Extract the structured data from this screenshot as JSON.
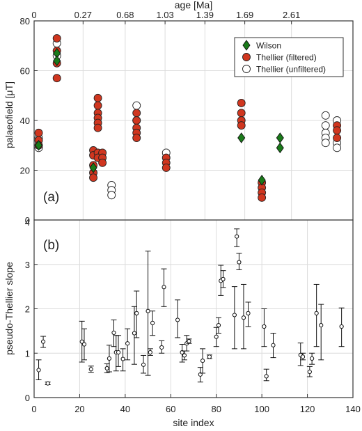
{
  "chart_data": [
    {
      "type": "scatter",
      "panel_label": "(a)",
      "ylabel": "palaeofield [μT]",
      "xlabel_top": "age [Ma]",
      "xlim": [
        0,
        140
      ],
      "ylim": [
        0,
        80
      ],
      "yticks": [
        0,
        20,
        40,
        60,
        80
      ],
      "top_ticks": [
        {
          "x": 0,
          "label": "0"
        },
        {
          "x": 21.5,
          "label": "0.27"
        },
        {
          "x": 40,
          "label": "0.68"
        },
        {
          "x": 57.5,
          "label": "1.03"
        },
        {
          "x": 75,
          "label": "1.39"
        },
        {
          "x": 92.5,
          "label": "1.69"
        },
        {
          "x": 113,
          "label": "2.61"
        }
      ],
      "grid": true,
      "legend_position": "top-right",
      "series": [
        {
          "name": "Wilson",
          "marker": "diamond",
          "color": "#1a7a1a",
          "points": [
            [
              2,
              30
            ],
            [
              10,
              67
            ],
            [
              10,
              64
            ],
            [
              26,
              21
            ],
            [
              91,
              33
            ],
            [
              100,
              16
            ],
            [
              108,
              33
            ],
            [
              108,
              29
            ]
          ]
        },
        {
          "name": "Thellier (filtered)",
          "marker": "circle",
          "color": "#d0361f",
          "points": [
            [
              2,
              35
            ],
            [
              2,
              32
            ],
            [
              2,
              30
            ],
            [
              10,
              73
            ],
            [
              10,
              68
            ],
            [
              10,
              63
            ],
            [
              10,
              57
            ],
            [
              26,
              28
            ],
            [
              26,
              26
            ],
            [
              26,
              22
            ],
            [
              26,
              19
            ],
            [
              26,
              17
            ],
            [
              28,
              49
            ],
            [
              28,
              46
            ],
            [
              28,
              43
            ],
            [
              28,
              41
            ],
            [
              28,
              39
            ],
            [
              28,
              37
            ],
            [
              28,
              27
            ],
            [
              28,
              25
            ],
            [
              30,
              27
            ],
            [
              30,
              25
            ],
            [
              30,
              23
            ],
            [
              45,
              43
            ],
            [
              45,
              40
            ],
            [
              45,
              37
            ],
            [
              45,
              35
            ],
            [
              45,
              33
            ],
            [
              58,
              25
            ],
            [
              58,
              23
            ],
            [
              58,
              21
            ],
            [
              91,
              47
            ],
            [
              91,
              43
            ],
            [
              91,
              40
            ],
            [
              91,
              38
            ],
            [
              100,
              15
            ],
            [
              100,
              13
            ],
            [
              100,
              11
            ],
            [
              100,
              9
            ],
            [
              133,
              38
            ],
            [
              133,
              36
            ],
            [
              133,
              33
            ]
          ]
        },
        {
          "name": "Thellier (unfiltered)",
          "marker": "circle-open",
          "color": "#ffffff",
          "points": [
            [
              2,
              33
            ],
            [
              2,
              29
            ],
            [
              10,
              71
            ],
            [
              10,
              66
            ],
            [
              34,
              14
            ],
            [
              34,
              12
            ],
            [
              34,
              10
            ],
            [
              45,
              46
            ],
            [
              45,
              40
            ],
            [
              58,
              27
            ],
            [
              128,
              42
            ],
            [
              128,
              38
            ],
            [
              128,
              35
            ],
            [
              128,
              33
            ],
            [
              128,
              31
            ],
            [
              133,
              40
            ],
            [
              133,
              31
            ],
            [
              133,
              29
            ]
          ]
        }
      ]
    },
    {
      "type": "scatter",
      "panel_label": "(b)",
      "xlabel": "site index",
      "ylabel": "pseudo-Thellier slope",
      "xlim": [
        0,
        140
      ],
      "ylim": [
        0,
        4
      ],
      "xticks": [
        0,
        20,
        40,
        60,
        80,
        100,
        120,
        140
      ],
      "yticks": [
        0,
        1,
        2,
        3,
        4
      ],
      "grid": true,
      "series": [
        {
          "marker": "circle-open-errorbar",
          "color": "#000000",
          "points": [
            [
              2,
              0.62,
              0.4,
              0.85
            ],
            [
              4,
              1.26,
              1.13,
              1.38
            ],
            [
              6,
              0.32,
              0.29,
              0.35
            ],
            [
              21,
              1.26,
              0.8,
              1.72
            ],
            [
              22,
              1.2,
              0.85,
              1.55
            ],
            [
              25,
              0.64,
              0.57,
              0.71
            ],
            [
              32,
              0.66,
              0.56,
              0.76
            ],
            [
              33,
              0.88,
              0.58,
              1.18
            ],
            [
              35,
              1.46,
              1.15,
              1.75
            ],
            [
              36,
              1.02,
              0.6,
              1.4
            ],
            [
              37,
              1.02,
              0.7,
              1.4
            ],
            [
              39,
              0.87,
              0.6,
              1.1
            ],
            [
              41,
              1.22,
              0.85,
              1.55
            ],
            [
              44,
              1.45,
              0.75,
              2.05
            ],
            [
              45,
              1.9,
              1.35,
              2.4
            ],
            [
              48,
              0.74,
              0.55,
              0.95
            ],
            [
              50,
              1.95,
              0.5,
              3.3
            ],
            [
              51,
              1.02,
              0.95,
              1.1
            ],
            [
              52,
              1.68,
              1.4,
              1.95
            ],
            [
              56,
              1.13,
              1.0,
              1.28
            ],
            [
              57,
              2.49,
              2.05,
              2.9
            ],
            [
              63,
              1.75,
              1.35,
              2.2
            ],
            [
              65,
              1.02,
              0.8,
              1.2
            ],
            [
              66,
              0.95,
              0.85,
              1.05
            ],
            [
              67,
              1.22,
              1.05,
              1.4
            ],
            [
              68,
              1.27,
              1.22,
              1.32
            ],
            [
              73,
              0.52,
              0.35,
              0.68
            ],
            [
              74,
              0.83,
              0.55,
              1.1
            ],
            [
              77,
              0.92,
              0.88,
              0.96
            ],
            [
              80,
              1.37,
              1.15,
              1.58
            ],
            [
              81,
              1.63,
              1.45,
              1.8
            ],
            [
              82,
              2.63,
              2.3,
              2.98
            ],
            [
              83,
              2.67,
              2.48,
              2.86
            ],
            [
              88,
              1.86,
              1.1,
              2.5
            ],
            [
              89,
              3.63,
              3.4,
              3.8
            ],
            [
              90,
              3.05,
              2.88,
              3.25
            ],
            [
              92,
              1.8,
              1.1,
              2.55
            ],
            [
              94,
              1.9,
              1.6,
              2.15
            ],
            [
              101,
              1.6,
              1.15,
              2.0
            ],
            [
              102,
              0.48,
              0.38,
              0.64
            ],
            [
              105,
              1.18,
              0.9,
              1.45
            ],
            [
              117,
              0.96,
              0.72,
              1.23
            ],
            [
              118,
              0.92,
              0.85,
              1.0
            ],
            [
              121,
              0.58,
              0.47,
              0.7
            ],
            [
              122,
              0.88,
              0.75,
              1.0
            ],
            [
              124,
              1.9,
              1.15,
              2.55
            ],
            [
              126,
              1.63,
              0.85,
              2.1
            ],
            [
              135,
              1.6,
              1.15,
              2.02
            ]
          ]
        }
      ]
    }
  ]
}
